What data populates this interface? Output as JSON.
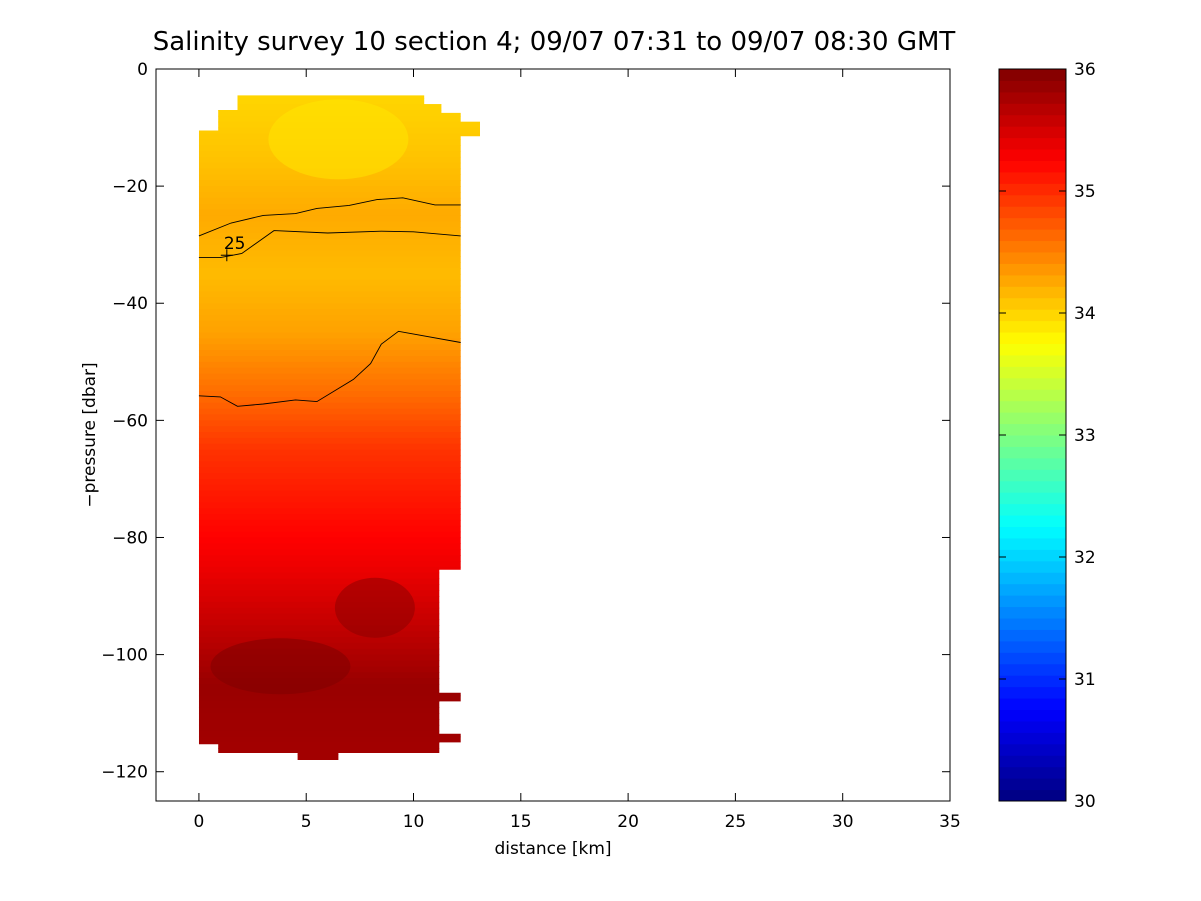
{
  "chart_data": {
    "type": "heatmap",
    "title": "Salinity survey 10 section 4; 09/07 07:31 to 09/07 08:30 GMT",
    "xlabel": "distance [km]",
    "ylabel": "−pressure [dbar]",
    "xlim": [
      -2,
      35
    ],
    "ylim": [
      -125,
      0
    ],
    "xticks": [
      0,
      5,
      10,
      15,
      20,
      25,
      30,
      35
    ],
    "yticks": [
      0,
      -20,
      -40,
      -60,
      -80,
      -100,
      -120
    ],
    "xtick_labels": [
      "0",
      "5",
      "10",
      "15",
      "20",
      "25",
      "30",
      "35"
    ],
    "ytick_labels": [
      "0",
      "−20",
      "−40",
      "−60",
      "−80",
      "−100",
      "−120"
    ],
    "grid": false,
    "colormap": "jet",
    "colorbar": {
      "min": 30,
      "max": 36,
      "ticks": [
        30,
        31,
        32,
        33,
        34,
        35,
        36
      ],
      "tick_labels": [
        "30",
        "31",
        "32",
        "33",
        "34",
        "35",
        "36"
      ]
    },
    "salinity_profile": [
      {
        "depth": -5,
        "salinity": 34.0
      },
      {
        "depth": -15,
        "salinity": 34.1
      },
      {
        "depth": -25,
        "salinity": 34.25
      },
      {
        "depth": -35,
        "salinity": 34.15
      },
      {
        "depth": -45,
        "salinity": 34.3
      },
      {
        "depth": -55,
        "salinity": 34.6
      },
      {
        "depth": -65,
        "salinity": 34.95
      },
      {
        "depth": -75,
        "salinity": 35.15
      },
      {
        "depth": -85,
        "salinity": 35.35
      },
      {
        "depth": -95,
        "salinity": 35.6
      },
      {
        "depth": -105,
        "salinity": 35.85
      },
      {
        "depth": -115,
        "salinity": 35.8
      }
    ],
    "data_extent": {
      "x": [
        0,
        12.2
      ],
      "y": [
        -118,
        -5
      ]
    },
    "contour_label": "25",
    "contours": [
      {
        "points": [
          [
            0,
            -28.5
          ],
          [
            1.5,
            -26.3
          ],
          [
            3,
            -25
          ],
          [
            4.5,
            -24.7
          ],
          [
            5.5,
            -23.8
          ],
          [
            7,
            -23.3
          ],
          [
            8.3,
            -22.3
          ],
          [
            9.5,
            -22
          ],
          [
            11,
            -23.2
          ],
          [
            12.2,
            -23.2
          ]
        ]
      },
      {
        "points": [
          [
            0,
            -32.2
          ],
          [
            1,
            -32.2
          ],
          [
            2,
            -31.5
          ],
          [
            3.5,
            -27.6
          ],
          [
            6,
            -28
          ],
          [
            8.5,
            -27.7
          ],
          [
            10,
            -27.8
          ],
          [
            12.2,
            -28.5
          ]
        ]
      },
      {
        "points": [
          [
            0,
            -55.8
          ],
          [
            1,
            -56
          ],
          [
            1.8,
            -57.6
          ],
          [
            3,
            -57.2
          ],
          [
            4.5,
            -56.5
          ],
          [
            5.5,
            -56.8
          ],
          [
            7.2,
            -53
          ],
          [
            8,
            -50.3
          ],
          [
            8.5,
            -47
          ],
          [
            9.3,
            -44.8
          ],
          [
            12.2,
            -46.7
          ]
        ]
      }
    ]
  }
}
